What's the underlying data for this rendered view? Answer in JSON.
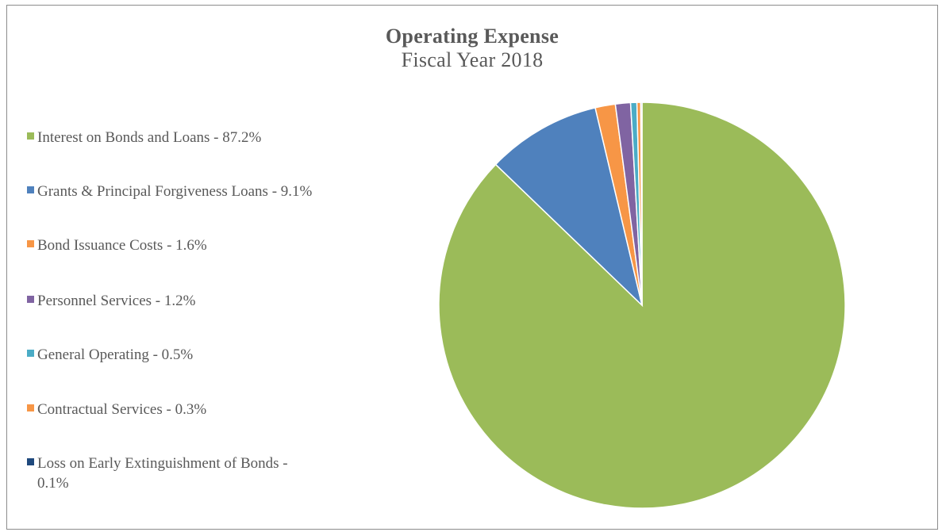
{
  "chart_data": {
    "type": "pie",
    "title": "Operating Expense",
    "subtitle": "Fiscal Year 2018",
    "legend_position": "left",
    "slices": [
      {
        "label": "Interest on Bonds and Loans - 87.2%",
        "value": 87.2,
        "color": "#9bbb59"
      },
      {
        "label": "Grants & Principal Forgiveness Loans - 9.1%",
        "value": 9.1,
        "color": "#4f81bd"
      },
      {
        "label": "Bond Issuance Costs - 1.6%",
        "value": 1.6,
        "color": "#f79646"
      },
      {
        "label": "Personnel Services - 1.2%",
        "value": 1.2,
        "color": "#8064a2"
      },
      {
        "label": "General Operating - 0.5%",
        "value": 0.5,
        "color": "#4bacc6"
      },
      {
        "label": "Contractual Services - 0.3%",
        "value": 0.3,
        "color": "#f79646"
      },
      {
        "label": "Loss on Early Extinguishment of Bonds - 0.1%",
        "value": 0.1,
        "color": "#1f497d"
      }
    ]
  }
}
